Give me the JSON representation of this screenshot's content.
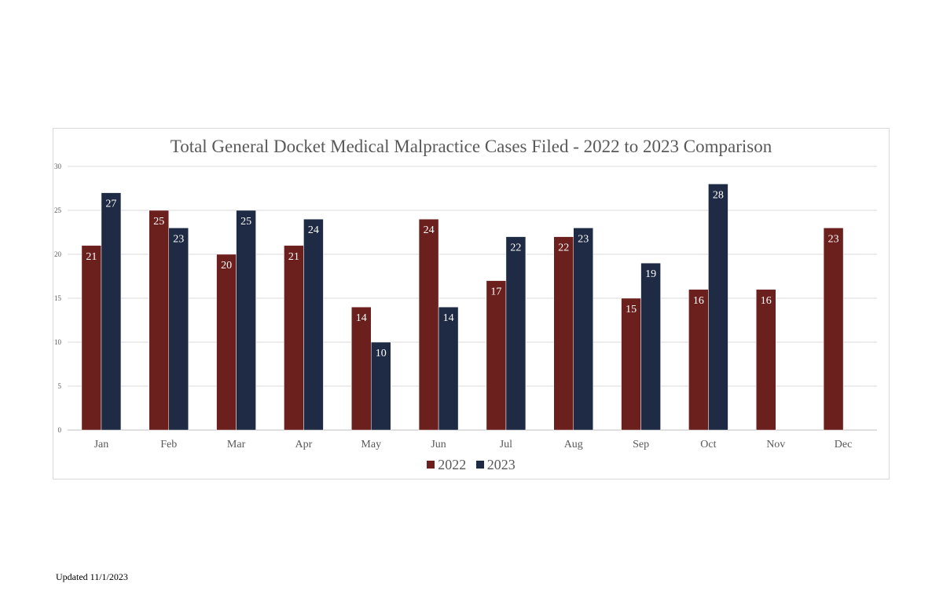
{
  "chart_data": {
    "type": "bar",
    "title": "Total General Docket Medical Malpractice Cases Filed - 2022 to 2023 Comparison",
    "categories": [
      "Jan",
      "Feb",
      "Mar",
      "Apr",
      "May",
      "Jun",
      "Jul",
      "Aug",
      "Sep",
      "Oct",
      "Nov",
      "Dec"
    ],
    "series": [
      {
        "name": "2022",
        "color": "#6b201e",
        "values": [
          21,
          25,
          20,
          21,
          14,
          24,
          17,
          22,
          15,
          16,
          16,
          23
        ]
      },
      {
        "name": "2023",
        "color": "#1f2a44",
        "values": [
          27,
          23,
          25,
          24,
          10,
          14,
          22,
          23,
          19,
          28,
          null,
          null
        ]
      }
    ],
    "ylim": [
      0,
      30
    ],
    "yticks": [
      0,
      5,
      10,
      15,
      20,
      25,
      30
    ],
    "grid": true,
    "legend": "bottom",
    "data_labels": true
  },
  "footer": {
    "note": "Updated 11/1/2023"
  }
}
